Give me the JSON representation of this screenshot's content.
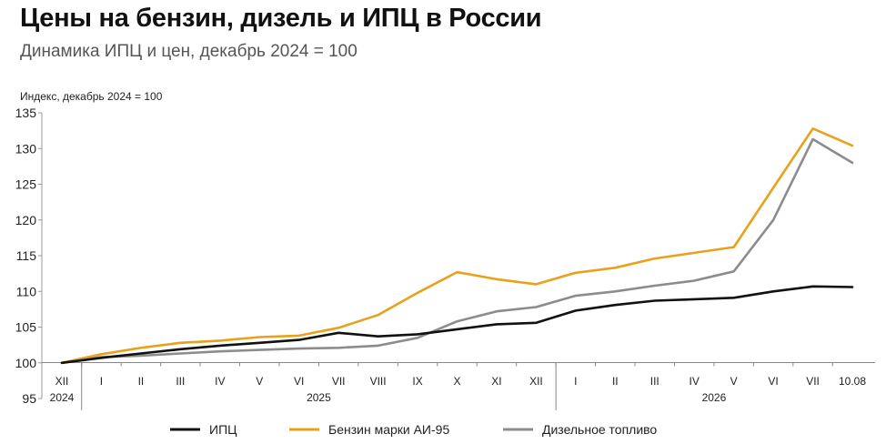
{
  "title": "Цены на бензин, дизель и ИПЦ в России",
  "subtitle": "Динамика ИПЦ и цен, декабрь 2024 = 100",
  "chart_data": {
    "type": "line",
    "ylabel": "Индекс, декабрь 2024 = 100",
    "ylim": [
      95,
      135
    ],
    "yticks": [
      95,
      100,
      105,
      110,
      115,
      120,
      125,
      130,
      135
    ],
    "grid": false,
    "legend_position": "bottom",
    "categories": [
      "XII",
      "I",
      "II",
      "III",
      "IV",
      "V",
      "VI",
      "VII",
      "VIII",
      "IX",
      "X",
      "XI",
      "XII",
      "I",
      "II",
      "III",
      "IV",
      "V",
      "VI",
      "VII",
      "10.08"
    ],
    "year_groups": [
      {
        "label": "2024",
        "start": 0,
        "end": 0
      },
      {
        "label": "2025",
        "start": 1,
        "end": 12
      },
      {
        "label": "2026",
        "start": 13,
        "end": 20
      }
    ],
    "series": [
      {
        "name": "ИПЦ",
        "color": "#111111",
        "values": [
          100,
          100.7,
          101.3,
          101.9,
          102.4,
          102.8,
          103.2,
          104.2,
          103.7,
          104.0,
          104.7,
          105.4,
          105.6,
          107.3,
          108.1,
          108.7,
          108.9,
          109.1,
          110.0,
          110.7,
          110.6
        ]
      },
      {
        "name": "Бензин марки АИ-95",
        "color": "#e8a11b",
        "values": [
          100,
          101.2,
          102.1,
          102.8,
          103.1,
          103.6,
          103.8,
          104.9,
          106.7,
          109.8,
          112.7,
          111.7,
          111.0,
          112.6,
          113.3,
          114.6,
          115.4,
          116.2,
          124.5,
          132.8,
          130.4
        ]
      },
      {
        "name": "Дизельное топливо",
        "color": "#8c8c8c",
        "values": [
          100,
          100.8,
          101.0,
          101.3,
          101.6,
          101.8,
          102.0,
          102.1,
          102.4,
          103.5,
          105.8,
          107.2,
          107.8,
          109.4,
          110.0,
          110.8,
          111.5,
          112.8,
          120.0,
          131.3,
          128.0
        ]
      }
    ]
  }
}
